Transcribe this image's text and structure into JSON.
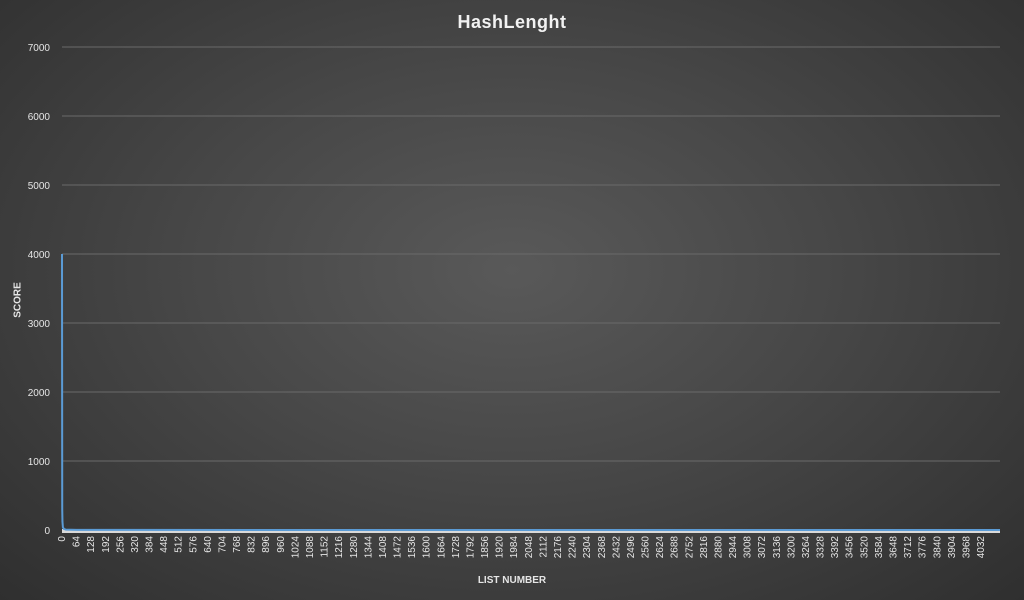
{
  "chart_data": {
    "type": "line",
    "title": "HashLenght",
    "xlabel": "LIST NUMBER",
    "ylabel": "SCORE",
    "ylim": [
      0,
      7000
    ],
    "yticks": [
      0,
      1000,
      2000,
      3000,
      4000,
      5000,
      6000,
      7000
    ],
    "xlim": [
      0,
      4096
    ],
    "x_tick_labels": [
      0,
      64,
      128,
      192,
      256,
      320,
      384,
      448,
      512,
      576,
      640,
      704,
      768,
      832,
      896,
      960,
      1024,
      1088,
      1152,
      1216,
      1280,
      1344,
      1408,
      1472,
      1536,
      1600,
      1664,
      1728,
      1792,
      1856,
      1920,
      1984,
      2048,
      2112,
      2176,
      2240,
      2304,
      2368,
      2432,
      2496,
      2560,
      2624,
      2688,
      2752,
      2816,
      2880,
      2944,
      3008,
      3072,
      3136,
      3200,
      3264,
      3328,
      3392,
      3456,
      3520,
      3584,
      3648,
      3712,
      3776,
      3840,
      3904,
      3968,
      4032
    ],
    "series": [
      {
        "color": "#5b9bd5",
        "x": [
          0,
          1,
          2,
          4,
          8,
          16,
          64,
          4096
        ],
        "y": [
          4000,
          300,
          120,
          40,
          15,
          6,
          1,
          0
        ]
      }
    ],
    "grid": true,
    "legend": "none"
  },
  "colors": {
    "series": "#5b9bd5",
    "gridline": "#6a6a6a",
    "axis_text": "#e6e6e6",
    "title_text": "#f2f2f2",
    "baseline": "#d9d9d9"
  }
}
